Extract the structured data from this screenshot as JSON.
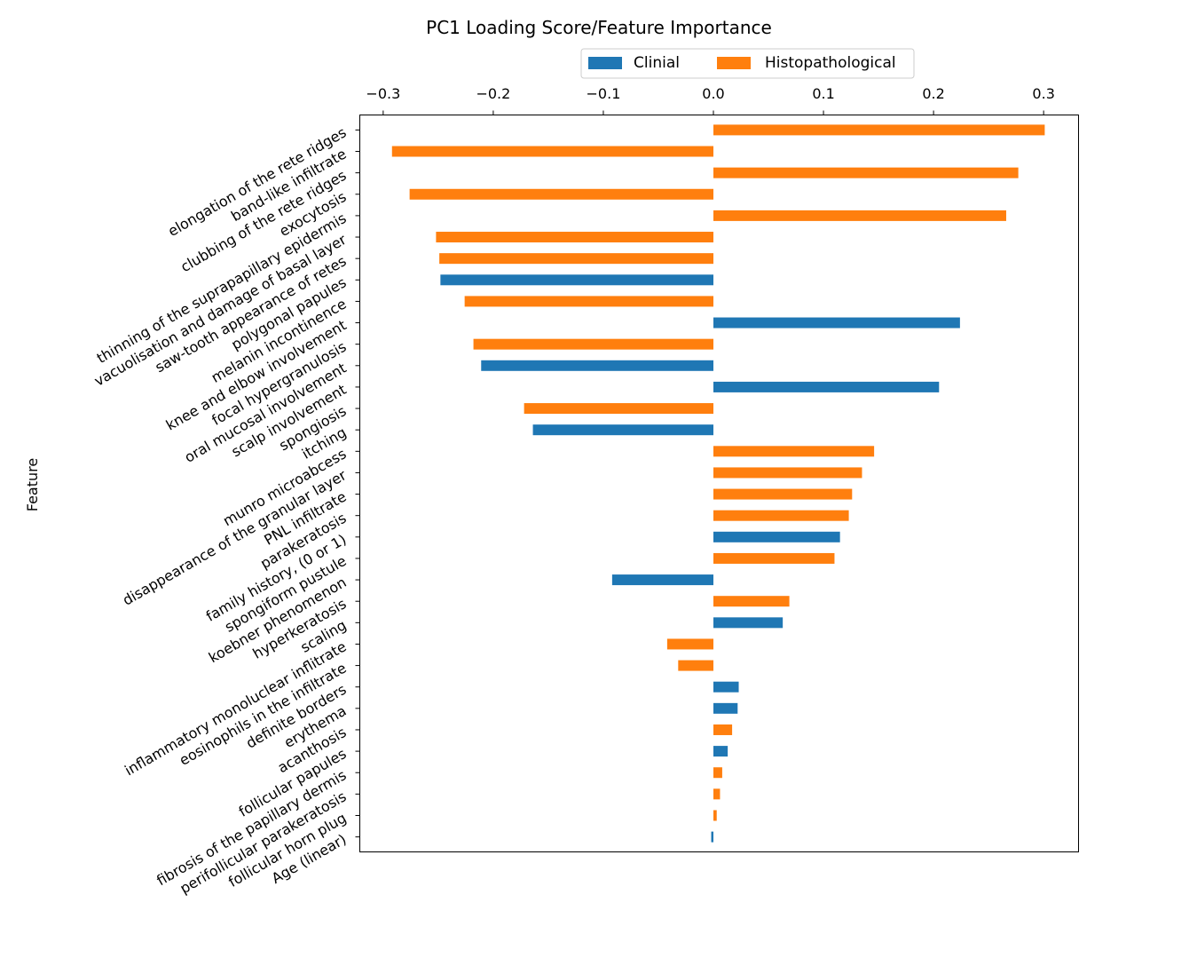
{
  "chart_data": {
    "type": "bar",
    "orientation": "horizontal",
    "title": "PC1 Loading Score/Feature Importance",
    "xlabel": "",
    "ylabel": "Feature",
    "xlim": [
      -0.3,
      0.33
    ],
    "xticks": [
      -0.3,
      -0.2,
      -0.1,
      0.0,
      0.1,
      0.2,
      0.3
    ],
    "xtick_labels": [
      "−0.3",
      "−0.2",
      "−0.1",
      "0.0",
      "0.1",
      "0.2",
      "0.3"
    ],
    "x_axis_position": "top",
    "grid": false,
    "legend_position": "top",
    "series": [
      {
        "name": "Clinial",
        "color": "#1f77b4"
      },
      {
        "name": "Histopathological",
        "color": "#ff7f0e"
      }
    ],
    "bars": [
      {
        "feature": "elongation of the rete ridges",
        "value": 0.301,
        "series": "Histopathological"
      },
      {
        "feature": "band-like infiltrate",
        "value": -0.292,
        "series": "Histopathological"
      },
      {
        "feature": "clubbing of the rete ridges",
        "value": 0.277,
        "series": "Histopathological"
      },
      {
        "feature": "exocytosis",
        "value": -0.276,
        "series": "Histopathological"
      },
      {
        "feature": "thinning of the suprapapillary epidermis",
        "value": 0.266,
        "series": "Histopathological"
      },
      {
        "feature": "vacuolisation and damage of basal layer",
        "value": -0.252,
        "series": "Histopathological"
      },
      {
        "feature": "saw-tooth appearance of retes",
        "value": -0.249,
        "series": "Histopathological"
      },
      {
        "feature": "polygonal papules",
        "value": -0.248,
        "series": "Clinial"
      },
      {
        "feature": "melanin incontinence",
        "value": -0.226,
        "series": "Histopathological"
      },
      {
        "feature": "knee and elbow involvement",
        "value": 0.224,
        "series": "Clinial"
      },
      {
        "feature": "focal hypergranulosis",
        "value": -0.218,
        "series": "Histopathological"
      },
      {
        "feature": "oral mucosal involvement",
        "value": -0.211,
        "series": "Clinial"
      },
      {
        "feature": "scalp involvement",
        "value": 0.205,
        "series": "Clinial"
      },
      {
        "feature": "spongiosis",
        "value": -0.172,
        "series": "Histopathological"
      },
      {
        "feature": "itching",
        "value": -0.164,
        "series": "Clinial"
      },
      {
        "feature": "munro microabcess",
        "value": 0.146,
        "series": "Histopathological"
      },
      {
        "feature": "disappearance of the granular layer",
        "value": 0.135,
        "series": "Histopathological"
      },
      {
        "feature": "PNL infiltrate",
        "value": 0.126,
        "series": "Histopathological"
      },
      {
        "feature": "parakeratosis",
        "value": 0.123,
        "series": "Histopathological"
      },
      {
        "feature": "family history, (0 or 1)",
        "value": 0.115,
        "series": "Clinial"
      },
      {
        "feature": "spongiform pustule",
        "value": 0.11,
        "series": "Histopathological"
      },
      {
        "feature": "koebner phenomenon",
        "value": -0.092,
        "series": "Clinial"
      },
      {
        "feature": "hyperkeratosis",
        "value": 0.069,
        "series": "Histopathological"
      },
      {
        "feature": "scaling",
        "value": 0.063,
        "series": "Clinial"
      },
      {
        "feature": "inflammatory monoluclear inflitrate",
        "value": -0.042,
        "series": "Histopathological"
      },
      {
        "feature": "eosinophils in the infiltrate",
        "value": -0.032,
        "series": "Histopathological"
      },
      {
        "feature": "definite borders",
        "value": 0.023,
        "series": "Clinial"
      },
      {
        "feature": "erythema",
        "value": 0.022,
        "series": "Clinial"
      },
      {
        "feature": "acanthosis",
        "value": 0.017,
        "series": "Histopathological"
      },
      {
        "feature": "follicular papules",
        "value": 0.013,
        "series": "Clinial"
      },
      {
        "feature": "fibrosis of the papillary dermis",
        "value": 0.008,
        "series": "Histopathological"
      },
      {
        "feature": "perifollicular parakeratosis",
        "value": 0.006,
        "series": "Histopathological"
      },
      {
        "feature": "follicular horn plug",
        "value": 0.003,
        "series": "Histopathological"
      },
      {
        "feature": "Age (linear)",
        "value": -0.002,
        "series": "Clinial"
      }
    ]
  }
}
